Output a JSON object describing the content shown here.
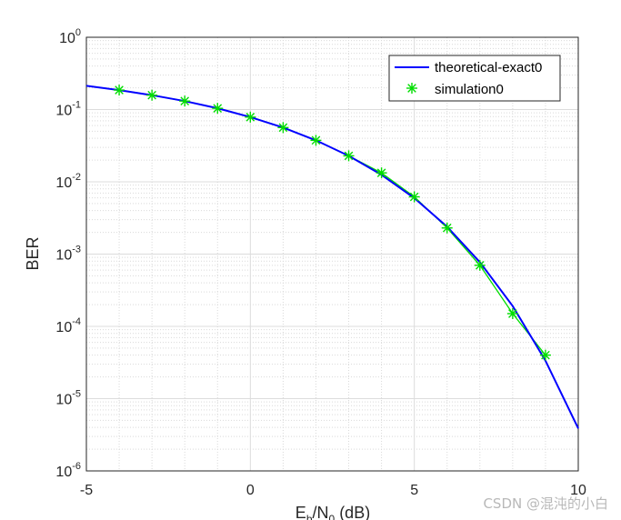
{
  "chart_data": {
    "type": "line",
    "xlabel": "E_b/N_0 (dB)",
    "xlabel_parts": {
      "E": "E",
      "b": "b",
      "sep": "/N",
      "sub0": "0",
      "unit": " (dB)"
    },
    "ylabel": "BER",
    "xlim": [
      -5,
      10
    ],
    "ylim": [
      1e-06,
      1
    ],
    "yscale": "log",
    "grid": "major and minor",
    "legend_placement": "top-right",
    "x_ticks": [
      "-5",
      "0",
      "5",
      "10"
    ],
    "y_ticks": [
      {
        "base": "10",
        "exp": "0"
      },
      {
        "base": "10",
        "exp": "-1"
      },
      {
        "base": "10",
        "exp": "-2"
      },
      {
        "base": "10",
        "exp": "-3"
      },
      {
        "base": "10",
        "exp": "-4"
      },
      {
        "base": "10",
        "exp": "-5"
      },
      {
        "base": "10",
        "exp": "-6"
      }
    ],
    "series": [
      {
        "name": "theoretical-exact0",
        "style": "line",
        "color": "#0000ff",
        "x": [
          -5,
          -4,
          -3,
          -2,
          -1,
          0,
          1,
          2,
          3,
          4,
          5,
          6,
          7,
          8,
          9,
          10
        ],
        "y": [
          0.213,
          0.186,
          0.158,
          0.131,
          0.104,
          0.0786,
          0.0563,
          0.0375,
          0.0229,
          0.0125,
          0.00595,
          0.00239,
          0.000773,
          0.000191,
          3.36e-05,
          3.87e-06
        ]
      },
      {
        "name": "simulation0",
        "style": "markers-line",
        "marker": "asterisk",
        "color": "#00dd00",
        "x": [
          -4,
          -3,
          -2,
          -1,
          0,
          1,
          2,
          3,
          4,
          5,
          6,
          7,
          8,
          9
        ],
        "y": [
          0.186,
          0.158,
          0.131,
          0.104,
          0.0786,
          0.0563,
          0.0375,
          0.0229,
          0.0133,
          0.0062,
          0.0023,
          0.0007,
          0.00015,
          4e-05
        ]
      }
    ]
  },
  "watermark": "CSDN @混沌的小白"
}
